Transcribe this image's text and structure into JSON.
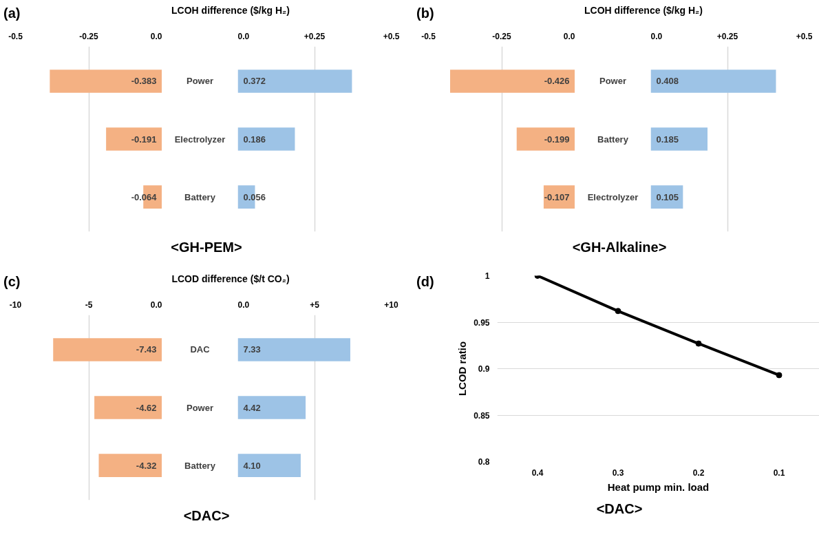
{
  "chart_data": [
    {
      "type": "bar",
      "orientation": "horizontal",
      "title": "(a)",
      "xlabel": "LCOH difference ($/kg H₂)",
      "categories": [
        "Power",
        "Electrolyzer",
        "Battery"
      ],
      "series": [
        {
          "color": "#f4b183",
          "values": [
            -0.383,
            -0.191,
            -0.064
          ],
          "value_labels": [
            "-0.383",
            "-0.191",
            "-0.064"
          ]
        }
      ],
      "xlim": [
        -0.5,
        0
      ],
      "xticks": [
        -0.5,
        -0.25,
        {
          "value": 0,
          "label": "0.0"
        }
      ],
      "grid": "x",
      "annotations": [
        "<GH-PEM>"
      ]
    },
    {
      "type": "bar",
      "orientation": "horizontal",
      "categories": [
        null,
        null,
        null
      ],
      "series": [
        {
          "color": "#9dc3e6",
          "values": [
            0.372,
            0.186,
            0.056
          ],
          "value_labels": [
            "0.372",
            "0.186",
            "0.056"
          ]
        }
      ],
      "xlim": [
        0,
        0.5
      ],
      "xticks": [
        {
          "value": 0,
          "label": "0.0"
        },
        {
          "value": 0.25,
          "label": "+0.25"
        },
        {
          "value": 0.5,
          "label": "+0.5"
        }
      ],
      "grid": "x"
    },
    {
      "type": "bar",
      "orientation": "horizontal",
      "title": "(b)",
      "xlabel": "LCOH difference ($/kg H₂)",
      "categories": [
        "Power",
        "Battery",
        "Electrolyzer"
      ],
      "series": [
        {
          "color": "#f4b183",
          "values": [
            -0.426,
            -0.199,
            -0.107
          ],
          "value_labels": [
            "-0.426",
            "-0.199",
            "-0.107"
          ]
        }
      ],
      "xlim": [
        -0.5,
        0
      ],
      "xticks": [
        -0.5,
        -0.25,
        {
          "value": 0,
          "label": "0.0"
        }
      ],
      "grid": "x",
      "annotations": [
        "<GH-Alkaline>"
      ]
    },
    {
      "type": "bar",
      "orientation": "horizontal",
      "categories": [
        null,
        null,
        null
      ],
      "series": [
        {
          "color": "#9dc3e6",
          "values": [
            0.408,
            0.185,
            0.105
          ],
          "value_labels": [
            "0.408",
            "0.185",
            "0.105"
          ]
        }
      ],
      "xlim": [
        0,
        0.5
      ],
      "xticks": [
        {
          "value": 0,
          "label": "0.0"
        },
        {
          "value": 0.25,
          "label": "+0.25"
        },
        {
          "value": 0.5,
          "label": "+0.5"
        }
      ],
      "grid": "x"
    },
    {
      "type": "bar",
      "orientation": "horizontal",
      "title": "(c)",
      "xlabel": "LCOD difference ($/t CO₂)",
      "categories": [
        "DAC",
        "Power",
        "Battery"
      ],
      "series": [
        {
          "color": "#f4b183",
          "values": [
            -7.43,
            -4.62,
            -4.32
          ],
          "value_labels": [
            "-7.43",
            "-4.62",
            "-4.32"
          ]
        }
      ],
      "xlim": [
        -10,
        0
      ],
      "xticks": [
        -10,
        -5,
        {
          "value": 0,
          "label": "0.0"
        }
      ],
      "grid": "x",
      "annotations": [
        "<DAC>"
      ]
    },
    {
      "type": "bar",
      "orientation": "horizontal",
      "categories": [
        null,
        null,
        null
      ],
      "series": [
        {
          "color": "#9dc3e6",
          "values": [
            7.33,
            4.42,
            4.1
          ],
          "value_labels": [
            "7.33",
            "4.42",
            "4.10"
          ]
        }
      ],
      "xlim": [
        0,
        10
      ],
      "xticks": [
        {
          "value": 0,
          "label": "0.0"
        },
        {
          "value": 5,
          "label": "+5"
        },
        {
          "value": 10,
          "label": "+10"
        }
      ],
      "grid": "x"
    },
    {
      "type": "line",
      "title": "(d)",
      "xlabel": "Heat pump min. load",
      "ylabel": "LCOD ratio",
      "categories": [
        "0.4",
        "0.3",
        "0.2",
        "0.1"
      ],
      "series": [
        {
          "color": "#000000",
          "values": [
            1.0,
            0.962,
            0.927,
            0.893
          ]
        }
      ],
      "ylim": [
        0.8,
        1.0
      ],
      "yticks": [
        0.8,
        0.85,
        0.9,
        0.95,
        1
      ],
      "grid": "y",
      "marker": "circle",
      "line_style": "solid",
      "annotations": [
        "<DAC>"
      ]
    }
  ]
}
